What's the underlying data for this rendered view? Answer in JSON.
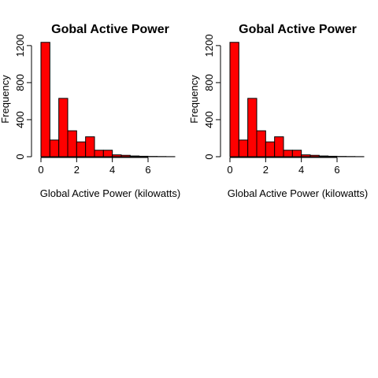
{
  "chart_data": [
    {
      "type": "bar",
      "title": "Gobal Active Power",
      "xlabel": "Global Active Power (kilowatts)",
      "ylabel": "Frequency",
      "bar_color": "#ff0000",
      "xlim": [
        0,
        7.5
      ],
      "ylim": [
        0,
        1250
      ],
      "x_ticks": [
        0,
        2,
        4,
        6
      ],
      "y_ticks": [
        0,
        400,
        800,
        1200
      ],
      "bins": [
        {
          "x0": 0.0,
          "x1": 0.5,
          "count": 1235
        },
        {
          "x0": 0.5,
          "x1": 1.0,
          "count": 180
        },
        {
          "x0": 1.0,
          "x1": 1.5,
          "count": 630
        },
        {
          "x0": 1.5,
          "x1": 2.0,
          "count": 280
        },
        {
          "x0": 2.0,
          "x1": 2.5,
          "count": 160
        },
        {
          "x0": 2.5,
          "x1": 3.0,
          "count": 215
        },
        {
          "x0": 3.0,
          "x1": 3.5,
          "count": 70
        },
        {
          "x0": 3.5,
          "x1": 4.0,
          "count": 70
        },
        {
          "x0": 4.0,
          "x1": 4.5,
          "count": 20
        },
        {
          "x0": 4.5,
          "x1": 5.0,
          "count": 15
        },
        {
          "x0": 5.0,
          "x1": 5.5,
          "count": 8
        },
        {
          "x0": 5.5,
          "x1": 6.0,
          "count": 5
        },
        {
          "x0": 6.0,
          "x1": 6.5,
          "count": 3
        },
        {
          "x0": 6.5,
          "x1": 7.0,
          "count": 2
        },
        {
          "x0": 7.0,
          "x1": 7.5,
          "count": 1
        }
      ]
    },
    {
      "type": "bar",
      "title": "Gobal Active Power",
      "xlabel": "Global Active Power (kilowatts)",
      "ylabel": "Frequency",
      "bar_color": "#ff0000",
      "xlim": [
        0,
        7.5
      ],
      "ylim": [
        0,
        1250
      ],
      "x_ticks": [
        0,
        2,
        4,
        6
      ],
      "y_ticks": [
        0,
        400,
        800,
        1200
      ],
      "bins": [
        {
          "x0": 0.0,
          "x1": 0.5,
          "count": 1235
        },
        {
          "x0": 0.5,
          "x1": 1.0,
          "count": 180
        },
        {
          "x0": 1.0,
          "x1": 1.5,
          "count": 630
        },
        {
          "x0": 1.5,
          "x1": 2.0,
          "count": 280
        },
        {
          "x0": 2.0,
          "x1": 2.5,
          "count": 160
        },
        {
          "x0": 2.5,
          "x1": 3.0,
          "count": 215
        },
        {
          "x0": 3.0,
          "x1": 3.5,
          "count": 70
        },
        {
          "x0": 3.5,
          "x1": 4.0,
          "count": 70
        },
        {
          "x0": 4.0,
          "x1": 4.5,
          "count": 20
        },
        {
          "x0": 4.5,
          "x1": 5.0,
          "count": 15
        },
        {
          "x0": 5.0,
          "x1": 5.5,
          "count": 8
        },
        {
          "x0": 5.5,
          "x1": 6.0,
          "count": 5
        },
        {
          "x0": 6.0,
          "x1": 6.5,
          "count": 3
        },
        {
          "x0": 6.5,
          "x1": 7.0,
          "count": 2
        },
        {
          "x0": 7.0,
          "x1": 7.5,
          "count": 1
        }
      ]
    }
  ]
}
